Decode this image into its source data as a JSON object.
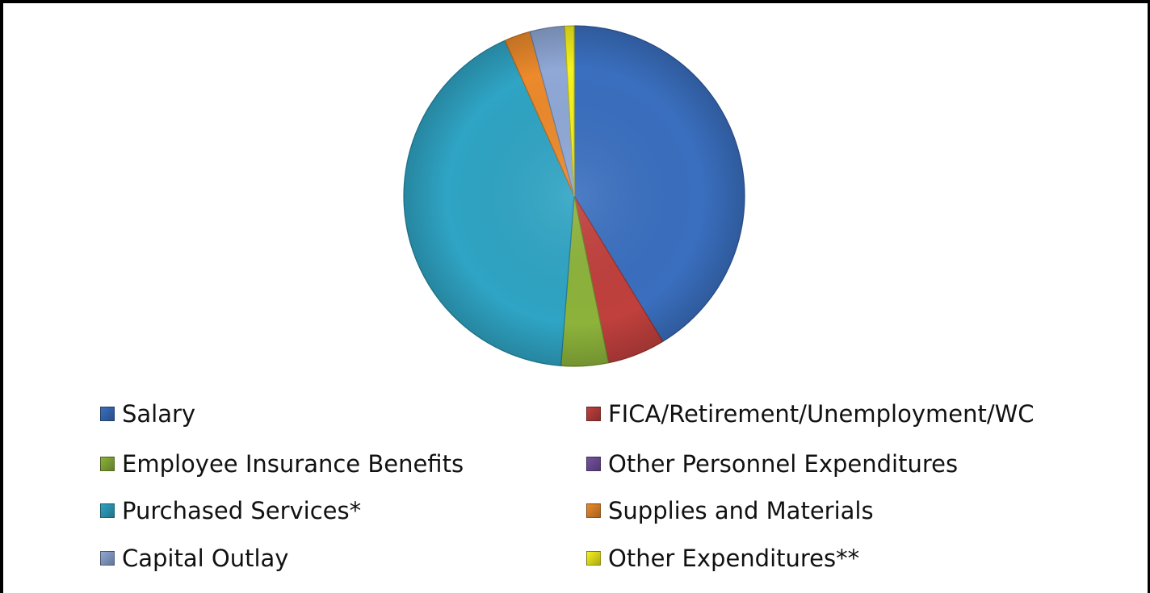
{
  "chart_data": {
    "type": "pie",
    "title": "",
    "slices": [
      {
        "label": "Salary",
        "value": 41.5,
        "color": "#3a6fbf"
      },
      {
        "label": "FICA/Retirement/Unemployment/WC",
        "value": 5.5,
        "color": "#c0403d"
      },
      {
        "label": "Employee Insurance Benefits",
        "value": 4.5,
        "color": "#8db33b"
      },
      {
        "label": "Other Personnel Expenditures",
        "value": 0.0,
        "color": "#7552a0"
      },
      {
        "label": "Purchased Services*",
        "value": 42.3,
        "color": "#2fa4c4"
      },
      {
        "label": "Supplies and Materials",
        "value": 2.5,
        "color": "#ec8a2c"
      },
      {
        "label": "Capital Outlay",
        "value": 3.3,
        "color": "#8fa8d6"
      },
      {
        "label": "Other Expenditures**",
        "value": 0.9,
        "color": "#f6f21e"
      }
    ],
    "legend_position": "bottom"
  }
}
